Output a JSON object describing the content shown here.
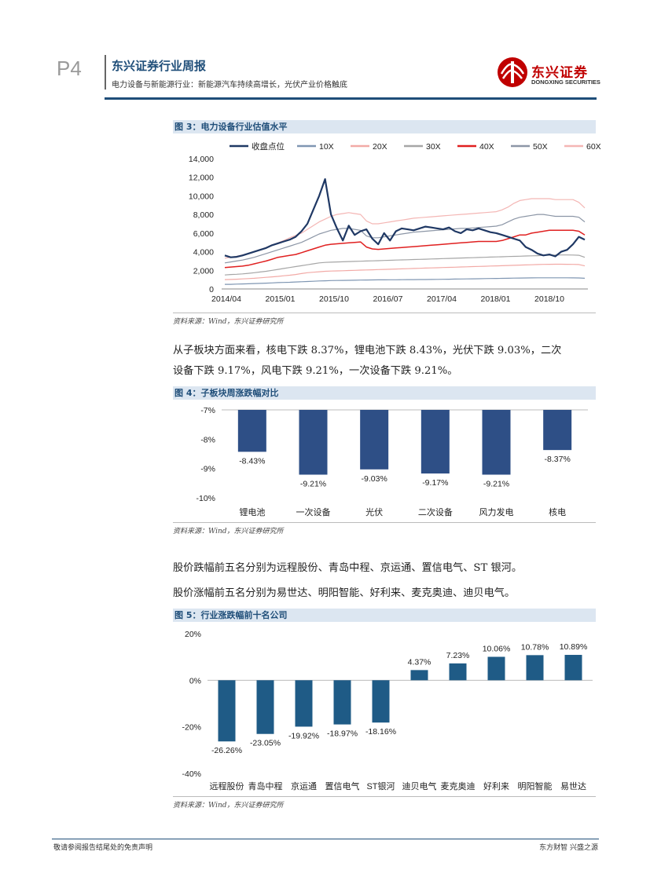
{
  "header": {
    "page_num": "P4",
    "title": "东兴证券行业周报",
    "subtitle": "电力设备与新能源行业：新能源汽车持续高增长，光伏产业价格触底",
    "logo_cn": "东兴证券",
    "logo_en": "DONGXING SECURITIES"
  },
  "fig3": {
    "title_prefix": "图 3：",
    "title": "电力设备行业估值水平",
    "source": "资料来源：Wind，东兴证券研究所"
  },
  "para1": {
    "line1": "从子板块方面来看，核电下跌 8.37%，锂电池下跌 8.43%，光伏下跌 9.03%，二次",
    "line2": "设备下跌 9.17%，风电下跌 9.21%，一次设备下跌 9.21%。"
  },
  "fig4": {
    "title_prefix": "图 4：",
    "title": "子板块周涨跌幅对比",
    "source": "资料来源：Wind，东兴证券研究所"
  },
  "para2": {
    "line1": "股价跌幅前五名分别为远程股份、青岛中程、京运通、置信电气、ST 银河。",
    "line2": "股价涨幅前五名分别为易世达、明阳智能、好利来、麦克奥迪、迪贝电气。"
  },
  "fig5": {
    "title_prefix": "图 5：",
    "title": "行业涨跌幅前十名公司",
    "source": "资料来源：Wind，东兴证券研究所"
  },
  "footer": {
    "left": "敬请参阅报告结尾处的免责声明",
    "right": "东方财智 兴盛之源"
  },
  "colors": {
    "brand_blue": "#1f4e79",
    "bar_blue": "#2e4f86",
    "bar_teal": "#1f5b86",
    "logo_red": "#c00000"
  },
  "chart_data": [
    {
      "type": "line",
      "x_ticks": [
        "2014/04",
        "2015/01",
        "2015/10",
        "2016/07",
        "2017/04",
        "2018/01",
        "2018/10"
      ],
      "ylim": [
        0,
        14000
      ],
      "y_ticks": [
        "0",
        "2,000",
        "4,000",
        "6,000",
        "8,000",
        "10,000",
        "12,000",
        "14,000"
      ],
      "legend_position": "top",
      "series": [
        {
          "name": "收盘点位",
          "color": "#1f3864",
          "width": 2.2,
          "values": [
            3600,
            3400,
            3450,
            3600,
            3800,
            4000,
            4200,
            4400,
            4700,
            4900,
            5100,
            5300,
            5600,
            6200,
            7000,
            8500,
            10000,
            11800,
            8000,
            6500,
            5200,
            6800,
            5800,
            6200,
            6400,
            5400,
            4800,
            6000,
            5200,
            6200,
            6500,
            6400,
            6300,
            6500,
            6700,
            6600,
            6500,
            6400,
            6600,
            6200,
            6000,
            6400,
            6300,
            6500,
            6300,
            6100,
            6000,
            5800,
            5600,
            5400,
            5200,
            4500,
            4200,
            3800,
            3600,
            3700,
            3500,
            4000,
            4200,
            4800,
            5600,
            5300
          ]
        },
        {
          "name": "10X",
          "color": "#7f96b2",
          "width": 1.2,
          "values": [
            500,
            500,
            520,
            540,
            560,
            580,
            600,
            620,
            650,
            680,
            700,
            720,
            750,
            780,
            800,
            830,
            860,
            880,
            900,
            910,
            920,
            930,
            940,
            950,
            960,
            970,
            975,
            980,
            985,
            990,
            995,
            1000,
            1005,
            1010,
            1015,
            1020,
            1030,
            1040,
            1050,
            1060,
            1070,
            1080,
            1090,
            1100,
            1110,
            1120,
            1130,
            1140,
            1150,
            1160,
            1170,
            1180,
            1190,
            1200,
            1200,
            1200,
            1200,
            1200,
            1200,
            1190,
            1180,
            1150
          ]
        },
        {
          "name": "20X",
          "color": "#f2aaa6",
          "width": 1.2,
          "values": [
            1000,
            1020,
            1050,
            1080,
            1110,
            1150,
            1200,
            1250,
            1300,
            1350,
            1420,
            1480,
            1550,
            1650,
            1750,
            1800,
            1850,
            1900,
            1920,
            1940,
            1960,
            1980,
            2000,
            2020,
            2040,
            2060,
            2080,
            2100,
            2120,
            2140,
            2160,
            2180,
            2200,
            2220,
            2240,
            2260,
            2280,
            2300,
            2320,
            2340,
            2360,
            2380,
            2400,
            2420,
            2440,
            2460,
            2480,
            2500,
            2520,
            2540,
            2560,
            2580,
            2600,
            2620,
            2640,
            2650,
            2660,
            2660,
            2650,
            2640,
            2620,
            2480
          ]
        },
        {
          "name": "30X",
          "color": "#a6a6a6",
          "width": 1.2,
          "values": [
            1500,
            1550,
            1580,
            1620,
            1680,
            1750,
            1820,
            1900,
            2000,
            2100,
            2200,
            2300,
            2400,
            2500,
            2600,
            2700,
            2800,
            2850,
            2880,
            2900,
            2920,
            2940,
            2960,
            2980,
            3000,
            3020,
            3040,
            3060,
            3080,
            3100,
            3120,
            3140,
            3160,
            3180,
            3200,
            3220,
            3240,
            3260,
            3280,
            3300,
            3320,
            3340,
            3360,
            3380,
            3400,
            3420,
            3440,
            3460,
            3480,
            3500,
            3520,
            3540,
            3560,
            3580,
            3600,
            3620,
            3640,
            3650,
            3650,
            3640,
            3620,
            3400
          ]
        },
        {
          "name": "40X",
          "color": "#e02020",
          "width": 1.5,
          "values": [
            2300,
            2350,
            2400,
            2450,
            2550,
            2700,
            2850,
            3000,
            3200,
            3400,
            3500,
            3600,
            3700,
            3900,
            4100,
            4300,
            4500,
            4700,
            4800,
            4850,
            4900,
            4950,
            5000,
            5050,
            4500,
            4300,
            4250,
            4300,
            4350,
            4400,
            4450,
            4500,
            4550,
            4600,
            4650,
            4700,
            4750,
            4800,
            4850,
            4900,
            4950,
            5000,
            5050,
            5100,
            5100,
            5100,
            5100,
            5200,
            5400,
            5600,
            5800,
            5800,
            6000,
            6100,
            6200,
            6300,
            6300,
            6300,
            6300,
            6300,
            6200,
            5800
          ]
        },
        {
          "name": "50X",
          "color": "#8c96a6",
          "width": 1.2,
          "values": [
            2800,
            2900,
            3000,
            3100,
            3250,
            3400,
            3600,
            3800,
            4000,
            4200,
            4400,
            4600,
            4800,
            5000,
            5300,
            5600,
            5900,
            6100,
            6300,
            6400,
            6500,
            6500,
            6400,
            6300,
            5700,
            5500,
            5500,
            5600,
            5700,
            5800,
            5900,
            6000,
            6100,
            6150,
            6200,
            6250,
            6300,
            6350,
            6400,
            6450,
            6500,
            6500,
            6550,
            6600,
            6650,
            6700,
            6750,
            6900,
            7200,
            7500,
            7700,
            7800,
            7900,
            8000,
            8000,
            7900,
            7800,
            7800,
            7800,
            7800,
            7700,
            7200
          ]
        },
        {
          "name": "60X",
          "color": "#f4b6b4",
          "width": 1.2,
          "values": [
            3300,
            3400,
            3500,
            3650,
            3800,
            4000,
            4200,
            4450,
            4700,
            4950,
            5200,
            5500,
            5750,
            6000,
            6400,
            6800,
            7200,
            7500,
            7800,
            8000,
            8100,
            8200,
            8100,
            8000,
            7300,
            7000,
            7000,
            7100,
            7200,
            7300,
            7400,
            7500,
            7600,
            7650,
            7700,
            7750,
            7800,
            7850,
            7900,
            7950,
            8000,
            8050,
            8100,
            8150,
            8200,
            8250,
            8300,
            8500,
            8800,
            9200,
            9500,
            9600,
            9700,
            9700,
            9700,
            9700,
            9600,
            9600,
            9600,
            9600,
            9300,
            8700
          ]
        }
      ]
    },
    {
      "type": "bar",
      "categories": [
        "锂电池",
        "一次设备",
        "光伏",
        "二次设备",
        "风力发电",
        "核电"
      ],
      "values": [
        -8.43,
        -9.21,
        -9.03,
        -9.17,
        -9.21,
        -8.37
      ],
      "labels": [
        "-8.43%",
        "-9.21%",
        "-9.03%",
        "-9.17%",
        "-9.21%",
        "-8.37%"
      ],
      "ylim": [
        -10,
        -7
      ],
      "y_ticks": [
        "-7%",
        "-8%",
        "-9%",
        "-10%"
      ]
    },
    {
      "type": "bar",
      "categories": [
        "远程股份",
        "青岛中程",
        "京运通",
        "置信电气",
        "ST银河",
        "迪贝电气",
        "麦克奥迪",
        "好利来",
        "明阳智能",
        "易世达"
      ],
      "values": [
        -26.26,
        -23.05,
        -19.92,
        -18.97,
        -18.16,
        4.37,
        7.23,
        10.06,
        10.78,
        10.89
      ],
      "labels": [
        "-26.26%",
        "-23.05%",
        "-19.92%",
        "-18.97%",
        "-18.16%",
        "4.37%",
        "7.23%",
        "10.06%",
        "10.78%",
        "10.89%"
      ],
      "ylim": [
        -40,
        20
      ],
      "y_ticks": [
        "20%",
        "0%",
        "-20%",
        "-40%"
      ]
    }
  ]
}
